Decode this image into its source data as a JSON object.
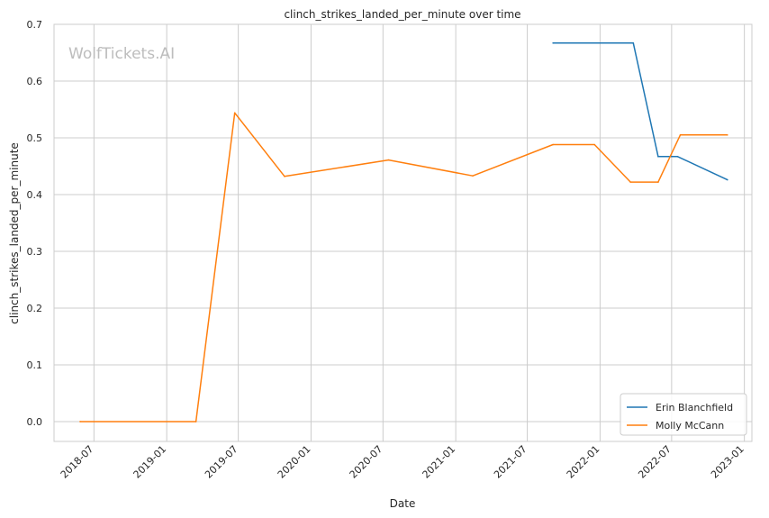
{
  "chart_data": {
    "type": "line",
    "title": "clinch_strikes_landed_per_minute over time",
    "xlabel": "Date",
    "ylabel": "clinch_strikes_landed_per_minute",
    "watermark": "WolfTickets.AI",
    "x_ticks": [
      "2018-07",
      "2019-01",
      "2019-07",
      "2020-01",
      "2020-07",
      "2021-01",
      "2021-07",
      "2022-01",
      "2022-07",
      "2023-01"
    ],
    "y_ticks": [
      "0.0",
      "0.1",
      "0.2",
      "0.3",
      "0.4",
      "0.5",
      "0.6",
      "0.7"
    ],
    "xlim": [
      "2018-03-22",
      "2023-01-20"
    ],
    "ylim": [
      -0.035,
      0.7
    ],
    "grid": true,
    "legend_position": "bottom-right",
    "series": [
      {
        "name": "Erin Blanchfield",
        "color": "#1f77b4",
        "points": [
          {
            "x": "2021-09-04",
            "y": 0.667
          },
          {
            "x": "2022-03-26",
            "y": 0.667
          },
          {
            "x": "2022-05-28",
            "y": 0.467
          },
          {
            "x": "2022-07-16",
            "y": 0.467
          },
          {
            "x": "2022-11-19",
            "y": 0.426
          }
        ]
      },
      {
        "name": "Molly McCann",
        "color": "#ff7f0e",
        "points": [
          {
            "x": "2018-05-27",
            "y": 0.0
          },
          {
            "x": "2019-03-16",
            "y": 0.0
          },
          {
            "x": "2019-06-22",
            "y": 0.544
          },
          {
            "x": "2019-10-26",
            "y": 0.432
          },
          {
            "x": "2020-07-15",
            "y": 0.461
          },
          {
            "x": "2021-02-13",
            "y": 0.433
          },
          {
            "x": "2021-09-04",
            "y": 0.488
          },
          {
            "x": "2021-12-18",
            "y": 0.488
          },
          {
            "x": "2022-03-19",
            "y": 0.422
          },
          {
            "x": "2022-05-28",
            "y": 0.422
          },
          {
            "x": "2022-07-23",
            "y": 0.505
          },
          {
            "x": "2022-11-19",
            "y": 0.505
          }
        ]
      }
    ]
  }
}
